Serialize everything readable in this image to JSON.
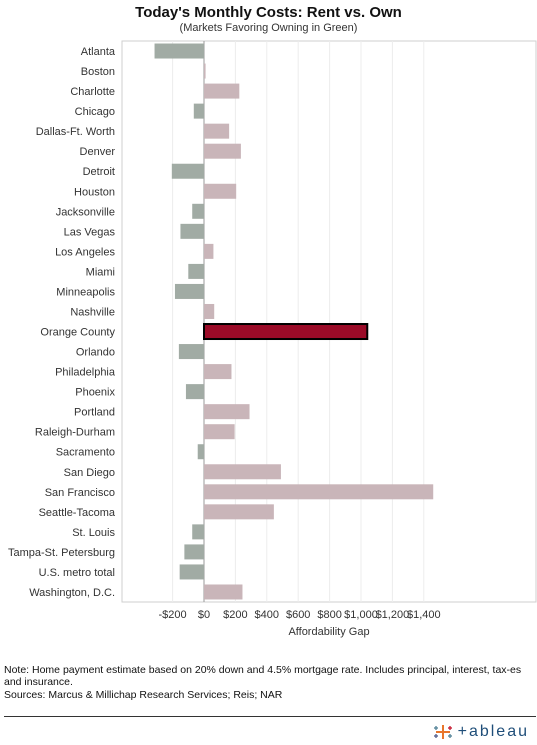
{
  "chart_data": {
    "type": "bar",
    "orientation": "horizontal",
    "title": "Today's Monthly Costs: Rent vs. Own",
    "subtitle": "(Markets Favoring Owning in Green)",
    "xlabel": "Affordability Gap",
    "xlim": [
      -300,
      1500
    ],
    "x_ticks": [
      -200,
      0,
      200,
      400,
      600,
      800,
      1000,
      1200,
      1400
    ],
    "x_tick_labels": [
      "-$200",
      "$0",
      "$200",
      "$400",
      "$600",
      "$800",
      "$1,000",
      "$1,200",
      "$1,400"
    ],
    "grid": true,
    "categories": [
      "Atlanta",
      "Boston",
      "Charlotte",
      "Chicago",
      "Dallas-Ft. Worth",
      "Denver",
      "Detroit",
      "Houston",
      "Jacksonville",
      "Las Vegas",
      "Los Angeles",
      "Miami",
      "Minneapolis",
      "Nashville",
      "Orange County",
      "Orlando",
      "Philadelphia",
      "Phoenix",
      "Portland",
      "Raleigh-Durham",
      "Sacramento",
      "San Diego",
      "San Francisco",
      "Seattle-Tacoma",
      "St. Louis",
      "Tampa-St. Petersburg",
      "U.S. metro total",
      "Washington, D.C."
    ],
    "values": [
      -315,
      10,
      225,
      -65,
      160,
      235,
      -205,
      205,
      -75,
      -150,
      60,
      -100,
      -185,
      65,
      1040,
      -160,
      175,
      -115,
      290,
      195,
      -40,
      490,
      1460,
      445,
      -75,
      -125,
      -155,
      245
    ],
    "highlight": "Orange County",
    "colors": {
      "owning_favored": "#a1aba4",
      "renting_favored": "#c9b5b9",
      "highlight_fill": "#9b0b28",
      "highlight_stroke": "#000000"
    }
  },
  "footnotes": {
    "note": "Note: Home payment estimate based on 20% down and 4.5% mortgage rate. Includes principal, interest, tax-es and insurance.",
    "sources": "Sources: Marcus & Millichap Research Services; Reis; NAR"
  },
  "branding": {
    "logo_text": "+ableau",
    "logo_icon": "tableau-cross-icon"
  }
}
